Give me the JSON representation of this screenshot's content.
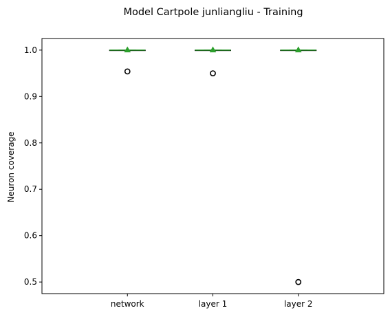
{
  "chart_data": {
    "type": "box",
    "title": "Model Cartpole junliangliu - Training",
    "xlabel": "",
    "ylabel": "Neuron coverage",
    "ylim": [
      0.475,
      1.025
    ],
    "yticks": [
      0.5,
      0.6,
      0.7,
      0.8,
      0.9,
      1.0
    ],
    "ytick_labels": [
      "0.5",
      "0.6",
      "0.7",
      "0.8",
      "0.9",
      "1.0"
    ],
    "categories": [
      "network",
      "layer 1",
      "layer 2"
    ],
    "boxes": [
      {
        "name": "network",
        "q1": 1.0,
        "median": 1.0,
        "q3": 1.0,
        "whisker_low": 1.0,
        "whisker_high": 1.0,
        "mean": 1.0,
        "outliers": [
          0.954
        ]
      },
      {
        "name": "layer 1",
        "q1": 1.0,
        "median": 1.0,
        "q3": 1.0,
        "whisker_low": 1.0,
        "whisker_high": 1.0,
        "mean": 1.0,
        "outliers": [
          0.95
        ]
      },
      {
        "name": "layer 2",
        "q1": 1.0,
        "median": 1.0,
        "q3": 1.0,
        "whisker_low": 1.0,
        "whisker_high": 1.0,
        "mean": 1.0,
        "outliers": [
          0.5
        ]
      }
    ],
    "grid": false,
    "legend": "none",
    "colors": {
      "median": "#2ca02c",
      "mean": "#2ca02c",
      "box": "#000000",
      "outlier": "#000000"
    }
  }
}
